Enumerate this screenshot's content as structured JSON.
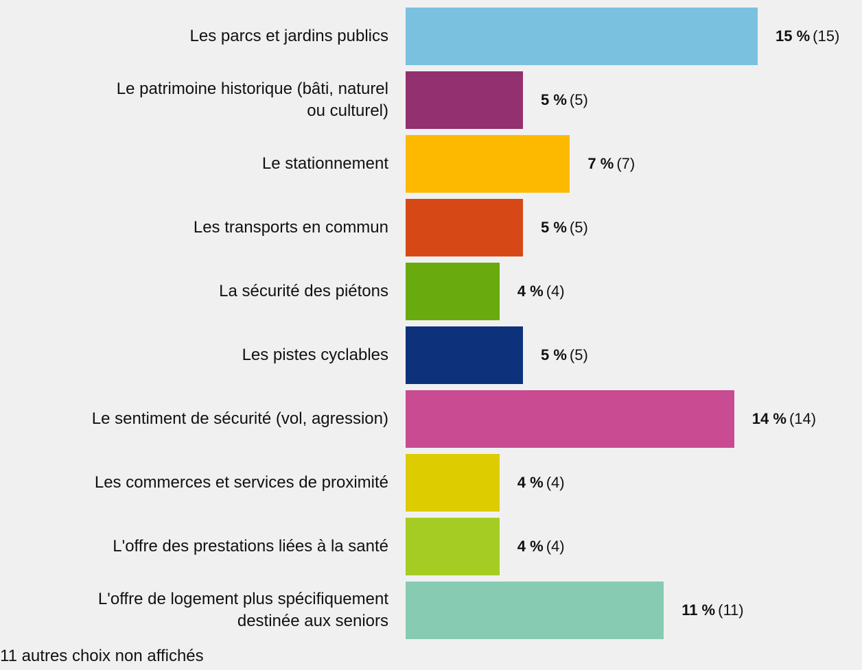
{
  "chart_data": {
    "type": "bar",
    "orientation": "horizontal",
    "categories": [
      "Les parcs et jardins publics",
      "Le patrimoine historique (bâti, naturel\nou culturel)",
      "Le stationnement",
      "Les transports en commun",
      "La sécurité des piétons",
      "Les pistes cyclables",
      "Le sentiment de sécurité (vol, agression)",
      "Les commerces et services de proximité",
      "L'offre des prestations liées à la santé",
      "L'offre de logement plus spécifiquement\ndestinée aux seniors"
    ],
    "values": [
      15,
      5,
      7,
      5,
      4,
      5,
      14,
      4,
      4,
      11
    ],
    "value_labels": [
      "15 %",
      "5 %",
      "7 %",
      "5 %",
      "4 %",
      "5 %",
      "14 %",
      "4 %",
      "4 %",
      "11 %"
    ],
    "counts": [
      15,
      5,
      7,
      5,
      4,
      5,
      14,
      4,
      4,
      11
    ],
    "count_labels": [
      "(15)",
      "(5)",
      "(7)",
      "(5)",
      "(4)",
      "(5)",
      "(14)",
      "(4)",
      "(4)",
      "(11)"
    ],
    "colors": [
      "#7ac1e0",
      "#93306f",
      "#fdb900",
      "#d64917",
      "#69aa0f",
      "#0d317b",
      "#c94b91",
      "#dccc00",
      "#a5cc22",
      "#87cbb2"
    ],
    "footnote": "11 autres choix non affichés"
  }
}
